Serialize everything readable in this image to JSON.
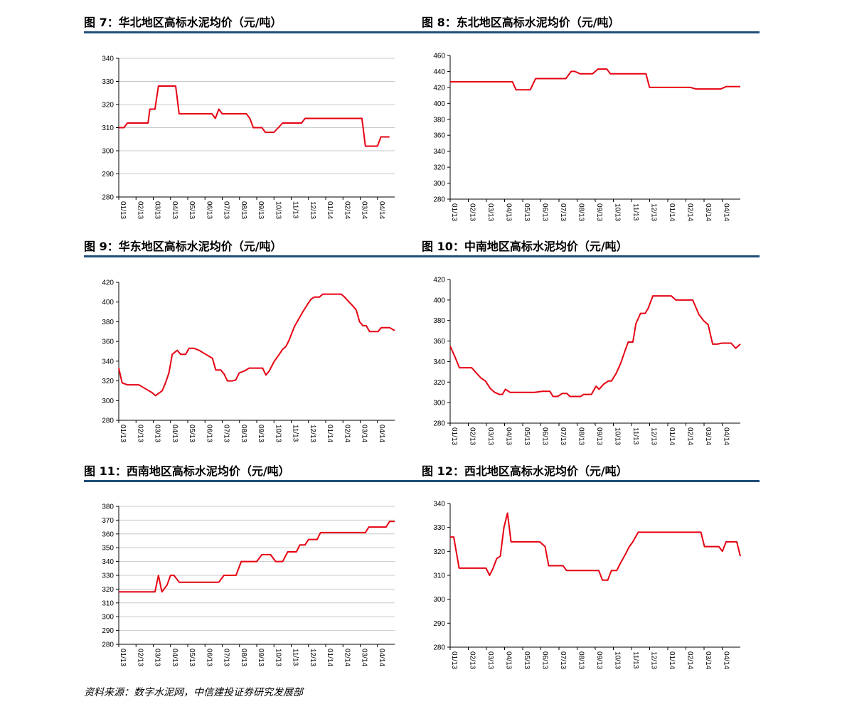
{
  "colors": {
    "line": "#e60012",
    "rule": "#1f4e79",
    "grid": "#c8c8c8"
  },
  "source": "资料来源：数字水泥网，中信建投证券研究发展部",
  "x_ticks": [
    "01/13",
    "02/13",
    "03/13",
    "04/13",
    "05/13",
    "06/13",
    "07/13",
    "08/13",
    "09/13",
    "10/13",
    "11/13",
    "12/13",
    "01/14",
    "02/14",
    "03/14",
    "04/14"
  ],
  "chart_data": [
    {
      "type": "line",
      "title": "图 7：华北地区高标水泥均价（元/吨）",
      "ylim": [
        280,
        340
      ],
      "y_ticks": [
        280,
        290,
        300,
        310,
        320,
        330,
        340
      ],
      "grid": true,
      "x_end": 16,
      "points": [
        [
          0,
          310
        ],
        [
          0.3,
          310
        ],
        [
          0.5,
          312
        ],
        [
          1.0,
          312
        ],
        [
          1.5,
          312
        ],
        [
          1.7,
          312
        ],
        [
          1.8,
          318
        ],
        [
          2.1,
          318
        ],
        [
          2.3,
          328
        ],
        [
          2.8,
          328
        ],
        [
          3.3,
          328
        ],
        [
          3.5,
          316
        ],
        [
          4.0,
          316
        ],
        [
          4.5,
          316
        ],
        [
          5.0,
          316
        ],
        [
          5.4,
          316
        ],
        [
          5.6,
          314
        ],
        [
          5.8,
          318
        ],
        [
          6.0,
          316
        ],
        [
          6.5,
          316
        ],
        [
          7.0,
          316
        ],
        [
          7.4,
          316
        ],
        [
          7.6,
          314
        ],
        [
          7.8,
          310
        ],
        [
          8.3,
          310
        ],
        [
          8.5,
          308
        ],
        [
          9.0,
          308
        ],
        [
          9.5,
          312
        ],
        [
          10.0,
          312
        ],
        [
          10.6,
          312
        ],
        [
          10.8,
          314
        ],
        [
          11.5,
          314
        ],
        [
          12.0,
          314
        ],
        [
          12.5,
          314
        ],
        [
          13.0,
          314
        ],
        [
          13.5,
          314
        ],
        [
          14.1,
          314
        ],
        [
          14.3,
          302
        ],
        [
          14.8,
          302
        ],
        [
          15.0,
          302
        ],
        [
          15.2,
          306
        ],
        [
          15.7,
          306
        ]
      ]
    },
    {
      "type": "line",
      "title": "图 8：东北地区高标水泥均价（元/吨）",
      "ylim": [
        280,
        460
      ],
      "y_ticks": [
        280,
        300,
        320,
        340,
        360,
        380,
        400,
        420,
        440,
        460
      ],
      "grid": false,
      "x_end": 16,
      "points": [
        [
          0,
          427
        ],
        [
          1.0,
          427
        ],
        [
          2.0,
          427
        ],
        [
          3.0,
          427
        ],
        [
          3.5,
          427
        ],
        [
          3.7,
          417
        ],
        [
          4.5,
          417
        ],
        [
          4.8,
          431
        ],
        [
          5.5,
          431
        ],
        [
          6.5,
          431
        ],
        [
          6.8,
          440
        ],
        [
          7.0,
          440
        ],
        [
          7.3,
          437
        ],
        [
          8.0,
          437
        ],
        [
          8.3,
          443
        ],
        [
          8.8,
          443
        ],
        [
          9.0,
          437
        ],
        [
          10.0,
          437
        ],
        [
          11.0,
          437
        ],
        [
          11.2,
          420
        ],
        [
          12.0,
          420
        ],
        [
          13.0,
          420
        ],
        [
          13.5,
          420
        ],
        [
          13.8,
          418
        ],
        [
          14.5,
          418
        ],
        [
          15.0,
          418
        ],
        [
          15.2,
          418
        ],
        [
          15.5,
          421
        ],
        [
          16.3,
          421
        ]
      ]
    },
    {
      "type": "line",
      "title": "图 9：华东地区高标水泥均价（元/吨）",
      "ylim": [
        280,
        420
      ],
      "y_ticks": [
        280,
        300,
        320,
        340,
        360,
        380,
        400,
        420
      ],
      "grid": false,
      "x_end": 16,
      "points": [
        [
          0,
          333
        ],
        [
          0.2,
          318
        ],
        [
          0.5,
          316
        ],
        [
          1.0,
          316
        ],
        [
          1.2,
          316
        ],
        [
          1.6,
          312
        ],
        [
          2.0,
          308
        ],
        [
          2.2,
          305
        ],
        [
          2.6,
          310
        ],
        [
          2.8,
          318
        ],
        [
          3.0,
          328
        ],
        [
          3.2,
          347
        ],
        [
          3.5,
          351
        ],
        [
          3.7,
          347
        ],
        [
          4.0,
          347
        ],
        [
          4.2,
          353
        ],
        [
          4.5,
          353
        ],
        [
          4.8,
          351
        ],
        [
          5.2,
          347
        ],
        [
          5.6,
          343
        ],
        [
          5.8,
          331
        ],
        [
          6.1,
          331
        ],
        [
          6.3,
          327
        ],
        [
          6.5,
          320
        ],
        [
          6.8,
          320
        ],
        [
          7.0,
          321
        ],
        [
          7.2,
          328
        ],
        [
          7.5,
          330
        ],
        [
          7.8,
          333
        ],
        [
          8.2,
          333
        ],
        [
          8.6,
          333
        ],
        [
          8.8,
          326
        ],
        [
          9.0,
          330
        ],
        [
          9.3,
          340
        ],
        [
          9.6,
          347
        ],
        [
          9.8,
          352
        ],
        [
          10.0,
          355
        ],
        [
          10.2,
          362
        ],
        [
          10.5,
          375
        ],
        [
          11.0,
          390
        ],
        [
          11.3,
          398
        ],
        [
          11.5,
          403
        ],
        [
          11.7,
          405
        ],
        [
          12.0,
          405
        ],
        [
          12.2,
          408
        ],
        [
          13.0,
          408
        ],
        [
          13.3,
          408
        ],
        [
          13.5,
          405
        ],
        [
          14.0,
          396
        ],
        [
          14.2,
          392
        ],
        [
          14.4,
          380
        ],
        [
          14.6,
          376
        ],
        [
          14.8,
          376
        ],
        [
          15.0,
          370
        ],
        [
          15.5,
          370
        ],
        [
          15.7,
          374
        ],
        [
          16.2,
          374
        ],
        [
          16.5,
          371
        ]
      ]
    },
    {
      "type": "line",
      "title": "图 10：中南地区高标水泥均价（元/吨）",
      "ylim": [
        280,
        420
      ],
      "y_ticks": [
        280,
        300,
        320,
        340,
        360,
        380,
        400,
        420
      ],
      "grid": false,
      "x_end": 16,
      "points": [
        [
          0,
          355
        ],
        [
          0.3,
          345
        ],
        [
          0.6,
          334
        ],
        [
          1.0,
          334
        ],
        [
          1.4,
          334
        ],
        [
          1.7,
          329
        ],
        [
          2.0,
          324
        ],
        [
          2.3,
          321
        ],
        [
          2.6,
          314
        ],
        [
          2.9,
          310
        ],
        [
          3.2,
          308
        ],
        [
          3.4,
          308
        ],
        [
          3.6,
          313
        ],
        [
          3.9,
          310
        ],
        [
          4.5,
          310
        ],
        [
          5.0,
          310
        ],
        [
          5.5,
          310
        ],
        [
          6.0,
          311
        ],
        [
          6.5,
          311
        ],
        [
          6.7,
          306
        ],
        [
          7.0,
          306
        ],
        [
          7.3,
          309
        ],
        [
          7.6,
          309
        ],
        [
          7.8,
          306
        ],
        [
          8.2,
          306
        ],
        [
          8.5,
          306
        ],
        [
          8.7,
          308
        ],
        [
          9.2,
          308
        ],
        [
          9.5,
          316
        ],
        [
          9.7,
          313
        ],
        [
          10.0,
          318
        ],
        [
          10.3,
          321
        ],
        [
          10.5,
          321
        ],
        [
          10.8,
          328
        ],
        [
          11.1,
          338
        ],
        [
          11.4,
          351
        ],
        [
          11.6,
          359
        ],
        [
          11.9,
          359
        ],
        [
          12.1,
          377
        ],
        [
          12.4,
          387
        ],
        [
          12.7,
          387
        ],
        [
          12.9,
          392
        ],
        [
          13.2,
          404
        ],
        [
          13.5,
          404
        ],
        [
          14.0,
          404
        ],
        [
          14.4,
          404
        ],
        [
          14.7,
          400
        ],
        [
          15.0,
          400
        ],
        [
          15.5,
          400
        ],
        [
          15.8,
          400
        ],
        [
          16.2,
          386
        ],
        [
          16.5,
          380
        ],
        [
          16.8,
          376
        ],
        [
          17.1,
          357
        ],
        [
          17.4,
          357
        ],
        [
          17.7,
          358
        ],
        [
          18.0,
          358
        ],
        [
          18.3,
          358
        ],
        [
          18.6,
          353
        ],
        [
          18.9,
          357
        ]
      ]
    },
    {
      "type": "line",
      "title": "图 11：西南地区高标水泥均价（元/吨）",
      "ylim": [
        280,
        380
      ],
      "y_ticks": [
        280,
        290,
        300,
        310,
        320,
        330,
        340,
        350,
        360,
        370,
        380
      ],
      "grid": true,
      "x_end": 16,
      "points": [
        [
          0,
          318
        ],
        [
          1.0,
          318
        ],
        [
          2.0,
          318
        ],
        [
          2.1,
          318
        ],
        [
          2.3,
          330
        ],
        [
          2.5,
          318
        ],
        [
          2.8,
          323
        ],
        [
          3.0,
          330
        ],
        [
          3.2,
          330
        ],
        [
          3.5,
          325
        ],
        [
          4.0,
          325
        ],
        [
          5.0,
          325
        ],
        [
          5.8,
          325
        ],
        [
          6.1,
          330
        ],
        [
          6.8,
          330
        ],
        [
          7.1,
          340
        ],
        [
          8.0,
          340
        ],
        [
          8.3,
          345
        ],
        [
          8.8,
          345
        ],
        [
          9.1,
          340
        ],
        [
          9.5,
          340
        ],
        [
          9.8,
          347
        ],
        [
          10.3,
          347
        ],
        [
          10.5,
          352
        ],
        [
          10.8,
          352
        ],
        [
          11.0,
          356
        ],
        [
          11.5,
          356
        ],
        [
          11.7,
          361
        ],
        [
          12.0,
          361
        ],
        [
          13.0,
          361
        ],
        [
          14.0,
          361
        ],
        [
          14.3,
          361
        ],
        [
          14.5,
          365
        ],
        [
          15.0,
          365
        ],
        [
          15.5,
          365
        ],
        [
          15.7,
          369
        ],
        [
          16.0,
          369
        ]
      ]
    },
    {
      "type": "line",
      "title": "图 12：西北地区高标水泥均价（元/吨）",
      "ylim": [
        280,
        340
      ],
      "y_ticks": [
        280,
        290,
        300,
        310,
        320,
        330,
        340
      ],
      "grid": false,
      "x_end": 16,
      "points": [
        [
          0,
          326
        ],
        [
          0.2,
          326
        ],
        [
          0.5,
          313
        ],
        [
          1.0,
          313
        ],
        [
          1.5,
          313
        ],
        [
          2.0,
          313
        ],
        [
          2.2,
          310
        ],
        [
          2.4,
          313
        ],
        [
          2.6,
          317
        ],
        [
          2.8,
          318
        ],
        [
          3.0,
          330
        ],
        [
          3.2,
          336
        ],
        [
          3.4,
          324
        ],
        [
          4.0,
          324
        ],
        [
          4.5,
          324
        ],
        [
          5.0,
          324
        ],
        [
          5.3,
          322
        ],
        [
          5.5,
          314
        ],
        [
          6.0,
          314
        ],
        [
          6.3,
          314
        ],
        [
          6.5,
          312
        ],
        [
          7.0,
          312
        ],
        [
          7.5,
          312
        ],
        [
          8.0,
          312
        ],
        [
          8.3,
          312
        ],
        [
          8.5,
          308
        ],
        [
          8.8,
          308
        ],
        [
          9.0,
          312
        ],
        [
          9.3,
          312
        ],
        [
          9.5,
          315
        ],
        [
          9.8,
          319
        ],
        [
          10.0,
          322
        ],
        [
          10.2,
          324
        ],
        [
          10.5,
          328
        ],
        [
          11.0,
          328
        ],
        [
          12.0,
          328
        ],
        [
          13.0,
          328
        ],
        [
          14.0,
          328
        ],
        [
          14.2,
          322
        ],
        [
          14.8,
          322
        ],
        [
          15.0,
          322
        ],
        [
          15.2,
          320
        ],
        [
          15.4,
          324
        ],
        [
          15.8,
          324
        ],
        [
          16.0,
          324
        ],
        [
          16.2,
          318
        ]
      ]
    }
  ]
}
